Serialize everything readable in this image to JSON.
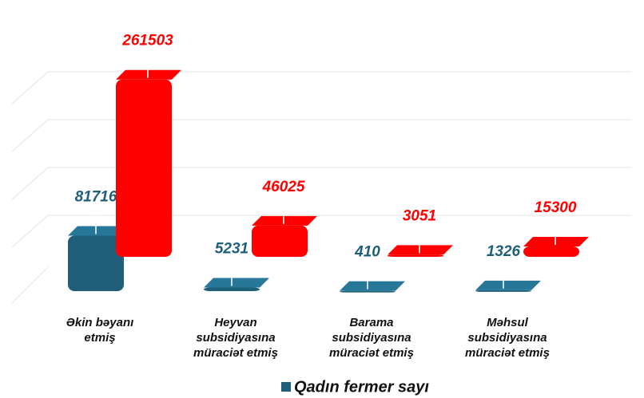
{
  "chart_data": {
    "type": "bar3d",
    "categories": [
      [
        "Əkin bəyanı",
        "etmiş"
      ],
      [
        "Heyvan",
        "subsidiyasına",
        "müraciət etmiş"
      ],
      [
        "Barama",
        "subsidiyasına",
        "müraciət etmiş"
      ],
      [
        "Məhsul",
        "subsidiyasına",
        "müraciət etmiş"
      ]
    ],
    "series": [
      {
        "name": "Qadın fermer sayı",
        "color": "#1f5f7a",
        "values": [
          81716,
          5231,
          410,
          1326
        ]
      },
      {
        "color": "#ff0000",
        "values": [
          261503,
          46025,
          3051,
          15300
        ]
      }
    ],
    "ylim": [
      0,
      280000
    ],
    "legend": "bottom"
  }
}
